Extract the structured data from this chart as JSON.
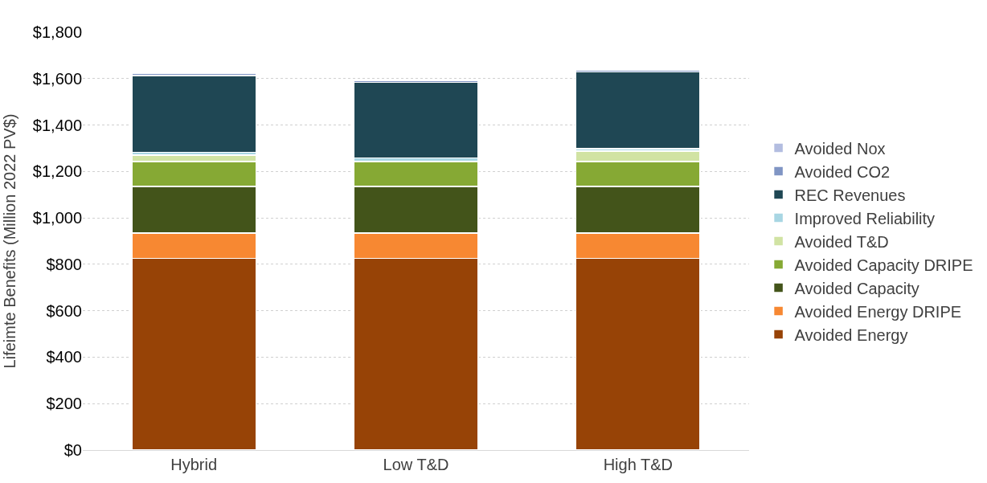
{
  "chart_data": {
    "type": "bar",
    "stacked": true,
    "ylabel": "Lifeimte Benefits (Million 2022 PV$)",
    "categories": [
      "Hybrid",
      "Low T&D",
      "High T&D"
    ],
    "series": [
      {
        "name": "Avoided Energy",
        "color": "#974306",
        "values": [
          825,
          825,
          825
        ]
      },
      {
        "name": "Avoided Energy DRIPE",
        "color": "#f78832",
        "values": [
          110,
          110,
          110
        ]
      },
      {
        "name": "Avoided Capacity",
        "color": "#43541a",
        "values": [
          200,
          200,
          200
        ]
      },
      {
        "name": "Avoided Capacity DRIPE",
        "color": "#86a934",
        "values": [
          108,
          108,
          108
        ]
      },
      {
        "name": "Avoided T&D",
        "color": "#d1e3a3",
        "values": [
          28,
          0,
          45
        ]
      },
      {
        "name": "Improved Reliability",
        "color": "#a8d6e3",
        "values": [
          12,
          15,
          10
        ]
      },
      {
        "name": "REC Revenues",
        "color": "#1f4754",
        "values": [
          330,
          325,
          330
        ]
      },
      {
        "name": "Avoided CO2",
        "color": "#8095c4",
        "values": [
          8,
          8,
          8
        ]
      },
      {
        "name": "Avoided Nox",
        "color": "#b3bde0",
        "values": [
          null,
          null,
          null
        ]
      }
    ],
    "ylim": [
      0,
      1800
    ],
    "yticks": [
      {
        "value": 0,
        "label": "$0"
      },
      {
        "value": 200,
        "label": "$200"
      },
      {
        "value": 400,
        "label": "$400"
      },
      {
        "value": 600,
        "label": "$600"
      },
      {
        "value": 800,
        "label": "$800"
      },
      {
        "value": 1000,
        "label": "$1,000"
      },
      {
        "value": 1200,
        "label": "$1,200"
      },
      {
        "value": 1400,
        "label": "$1,400"
      },
      {
        "value": 1600,
        "label": "$1,600"
      },
      {
        "value": 1800,
        "label": "$1,800"
      }
    ],
    "grid": "y",
    "legend": "right"
  }
}
